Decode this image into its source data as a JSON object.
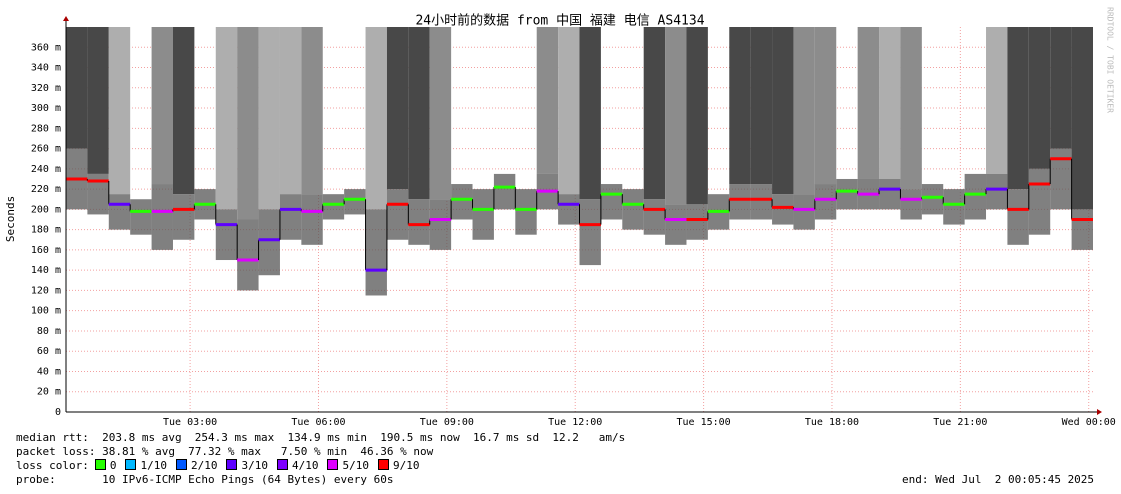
{
  "chart_data": {
    "type": "smokeping",
    "title": "24小时前的数据 from 中国 福建 电信 AS4134",
    "y_label": "Seconds",
    "watermark": "RRDTOOL / TOBI OETIKER",
    "xlim": [
      0.1,
      24.1
    ],
    "xticks": [
      {
        "value": 3,
        "label": "Tue 03:00"
      },
      {
        "value": 6,
        "label": "Tue 06:00"
      },
      {
        "value": 9,
        "label": "Tue 09:00"
      },
      {
        "value": 12,
        "label": "Tue 12:00"
      },
      {
        "value": 15,
        "label": "Tue 15:00"
      },
      {
        "value": 18,
        "label": "Tue 18:00"
      },
      {
        "value": 21,
        "label": "Tue 21:00"
      },
      {
        "value": 24,
        "label": "Wed 00:00"
      }
    ],
    "ylim": [
      0,
      0.38
    ],
    "yticks": [
      0,
      {
        "value": 0.02,
        "label": "20 m"
      },
      {
        "value": 0.04,
        "label": "40 m"
      },
      {
        "value": 0.06,
        "label": "60 m"
      },
      {
        "value": 0.08,
        "label": "80 m"
      },
      {
        "value": 0.1,
        "label": "100 m"
      },
      {
        "value": 0.12,
        "label": "120 m"
      },
      {
        "value": 0.14,
        "label": "140 m"
      },
      {
        "value": 0.16,
        "label": "160 m"
      },
      {
        "value": 0.18,
        "label": "180 m"
      },
      {
        "value": 0.2,
        "label": "200 m"
      },
      {
        "value": 0.22,
        "label": "220 m"
      },
      {
        "value": 0.24,
        "label": "240 m"
      },
      {
        "value": 0.26,
        "label": "260 m"
      },
      {
        "value": 0.28,
        "label": "280 m"
      },
      {
        "value": 0.3,
        "label": "300 m"
      },
      {
        "value": 0.32,
        "label": "320 m"
      },
      {
        "value": 0.34,
        "label": "340 m"
      },
      {
        "value": 0.36,
        "label": "360 m"
      }
    ],
    "grid": true,
    "x": [
      0.6,
      1.1,
      1.6,
      2.1,
      2.6,
      3.1,
      3.6,
      4.1,
      4.6,
      5.1,
      5.6,
      6.1,
      6.6,
      7.1,
      7.6,
      8.1,
      8.6,
      9.1,
      9.6,
      10.1,
      10.6,
      11.1,
      11.6,
      12.1,
      12.6,
      13.1,
      13.6,
      14.1,
      14.6,
      15.1,
      15.6,
      16.1,
      16.6,
      17.1,
      17.6,
      18.1,
      18.6,
      19.1,
      19.6,
      20.1,
      20.6,
      21.1,
      21.6,
      22.1,
      22.6,
      23.1,
      23.6,
      24.1
    ],
    "median": [
      0.23,
      0.228,
      0.205,
      0.198,
      0.198,
      0.2,
      0.205,
      0.185,
      0.15,
      0.17,
      0.2,
      0.198,
      0.205,
      0.21,
      0.14,
      0.205,
      0.185,
      0.19,
      0.21,
      0.2,
      0.222,
      0.2,
      0.218,
      0.205,
      0.185,
      0.215,
      0.205,
      0.2,
      0.19,
      0.19,
      0.198,
      0.21,
      0.21,
      0.202,
      0.2,
      0.21,
      0.218,
      0.215,
      0.22,
      0.21,
      0.212,
      0.205,
      0.215,
      0.22,
      0.2,
      0.225,
      0.25,
      0.19
    ],
    "min": [
      0.2,
      0.195,
      0.18,
      0.175,
      0.16,
      0.17,
      0.19,
      0.15,
      0.12,
      0.135,
      0.17,
      0.165,
      0.19,
      0.195,
      0.115,
      0.17,
      0.165,
      0.16,
      0.19,
      0.17,
      0.2,
      0.175,
      0.2,
      0.185,
      0.145,
      0.19,
      0.18,
      0.175,
      0.165,
      0.17,
      0.18,
      0.19,
      0.19,
      0.185,
      0.18,
      0.19,
      0.2,
      0.2,
      0.2,
      0.19,
      0.195,
      0.185,
      0.19,
      0.2,
      0.165,
      0.175,
      0.2,
      0.16
    ],
    "max": [
      0.26,
      0.235,
      0.215,
      0.21,
      0.225,
      0.215,
      0.22,
      0.2,
      0.19,
      0.2,
      0.215,
      0.215,
      0.215,
      0.22,
      0.2,
      0.22,
      0.21,
      0.21,
      0.225,
      0.22,
      0.235,
      0.22,
      0.235,
      0.215,
      0.21,
      0.225,
      0.22,
      0.21,
      0.205,
      0.205,
      0.215,
      0.225,
      0.225,
      0.215,
      0.215,
      0.225,
      0.23,
      0.23,
      0.23,
      0.22,
      0.225,
      0.22,
      0.235,
      0.235,
      0.22,
      0.24,
      0.26,
      0.2
    ],
    "loss": [
      9,
      9,
      3,
      0,
      5,
      9,
      0,
      3,
      5,
      3,
      3,
      5,
      0,
      0,
      3,
      9,
      9,
      5,
      0,
      0,
      0,
      0,
      5,
      3,
      9,
      0,
      0,
      9,
      5,
      9,
      0,
      9,
      9,
      9,
      5,
      5,
      0,
      5,
      3,
      5,
      0,
      0,
      0,
      3,
      9,
      9,
      9,
      9
    ],
    "loss_color_label": "loss color:",
    "loss_colors": [
      {
        "value": 0,
        "label": "0",
        "color": "#26ff00"
      },
      {
        "value": 1,
        "label": "1/10",
        "color": "#00b8ff"
      },
      {
        "value": 2,
        "label": "2/10",
        "color": "#0059ff"
      },
      {
        "value": 3,
        "label": "3/10",
        "color": "#5e00ff"
      },
      {
        "value": 4,
        "label": "4/10",
        "color": "#7e00ff"
      },
      {
        "value": 5,
        "label": "5/10",
        "color": "#dd00ff"
      },
      {
        "value": 9,
        "label": "9/10",
        "color": "#ff0000"
      }
    ],
    "stats": [
      "median rtt:  203.8 ms avg  254.3 ms max  134.9 ms min  190.5 ms now  16.7 ms sd  12.2   am/s",
      "packet loss: 38.81 % avg  77.32 % max   7.50 % min  46.36 % now"
    ],
    "probe": "probe:       10 IPv6-ICMP Echo Pings (64 Bytes) every 60s",
    "end": "end: Wed Jul  2 00:05:45 2025"
  }
}
